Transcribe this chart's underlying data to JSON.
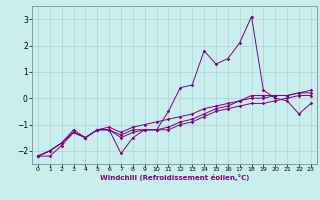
{
  "x": [
    0,
    1,
    2,
    3,
    4,
    5,
    6,
    7,
    8,
    9,
    10,
    11,
    12,
    13,
    14,
    15,
    16,
    17,
    18,
    19,
    20,
    21,
    22,
    23
  ],
  "line1": [
    -2.2,
    -2.2,
    -1.8,
    -1.3,
    -1.5,
    -1.2,
    -1.2,
    -2.1,
    -1.5,
    -1.2,
    -1.2,
    -0.5,
    0.4,
    0.5,
    1.8,
    1.3,
    1.5,
    2.1,
    3.1,
    0.3,
    0.0,
    -0.1,
    -0.6,
    -0.2
  ],
  "line2": [
    -2.2,
    -2.0,
    -1.7,
    -1.3,
    -1.5,
    -1.2,
    -1.2,
    -1.4,
    -1.2,
    -1.2,
    -1.2,
    -1.2,
    -1.0,
    -0.9,
    -0.7,
    -0.5,
    -0.4,
    -0.3,
    -0.2,
    -0.2,
    -0.1,
    0.0,
    0.1,
    0.1
  ],
  "line3": [
    -2.2,
    -2.0,
    -1.7,
    -1.3,
    -1.5,
    -1.2,
    -1.2,
    -1.5,
    -1.3,
    -1.2,
    -1.2,
    -1.1,
    -0.9,
    -0.8,
    -0.6,
    -0.4,
    -0.3,
    -0.1,
    0.1,
    0.1,
    0.1,
    0.1,
    0.2,
    0.2
  ],
  "line4": [
    -2.2,
    -2.0,
    -1.7,
    -1.2,
    -1.5,
    -1.2,
    -1.1,
    -1.3,
    -1.1,
    -1.0,
    -0.9,
    -0.8,
    -0.7,
    -0.6,
    -0.4,
    -0.3,
    -0.2,
    -0.1,
    0.0,
    0.0,
    0.1,
    0.1,
    0.2,
    0.3
  ],
  "color": "#800080",
  "bg_color": "#c8eeee",
  "grid_color": "#aad4d4",
  "xlabel": "Windchill (Refroidissement éolien,°C)",
  "ylim": [
    -2.5,
    3.5
  ],
  "xlim": [
    -0.5,
    23.5
  ],
  "yticks": [
    -2,
    -1,
    0,
    1,
    2,
    3
  ],
  "xticks": [
    0,
    1,
    2,
    3,
    4,
    5,
    6,
    7,
    8,
    9,
    10,
    11,
    12,
    13,
    14,
    15,
    16,
    17,
    18,
    19,
    20,
    21,
    22,
    23
  ]
}
